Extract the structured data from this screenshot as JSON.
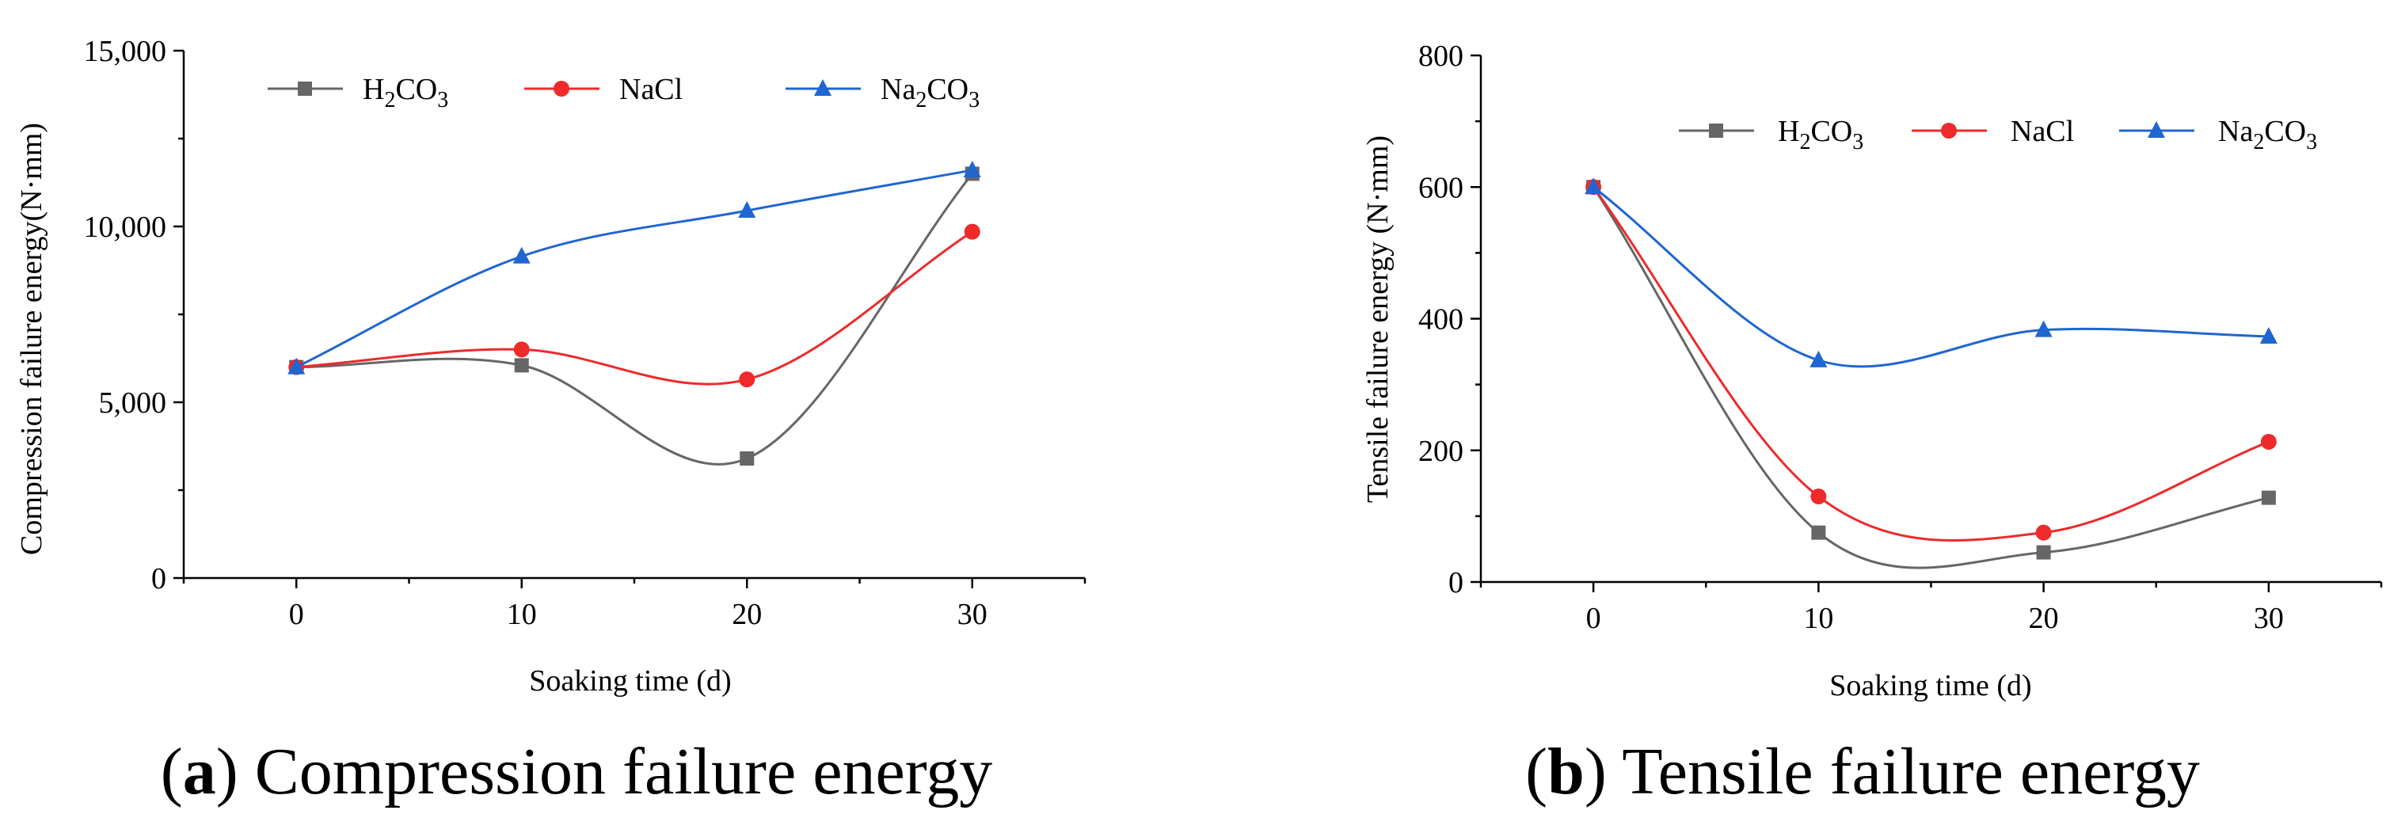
{
  "chart_data": [
    {
      "type": "line",
      "id": "a",
      "caption": {
        "letter": "a",
        "title": "Compression failure energy"
      },
      "xlabel": "Soaking time (d)",
      "ylabel": "Compression failure energy(N·mm)",
      "x": [
        0,
        10,
        20,
        30
      ],
      "xlim": [
        -5,
        35
      ],
      "ylim": [
        0,
        15000
      ],
      "xticks": [
        0,
        10,
        20,
        30
      ],
      "xtick_labels": [
        "0",
        "10",
        "20",
        "30"
      ],
      "yticks": [
        0,
        5000,
        10000,
        15000
      ],
      "ytick_labels": [
        "0",
        "5,000",
        "10,000",
        "15,000"
      ],
      "legend_position": "top",
      "series": [
        {
          "name": "H2CO3",
          "label_parts": [
            "H",
            "2",
            "CO",
            "3"
          ],
          "color": "#666666",
          "marker": "square",
          "values": [
            6000,
            6050,
            3400,
            11500
          ]
        },
        {
          "name": "NaCl",
          "label_parts": [
            "NaCl",
            "",
            "",
            ""
          ],
          "color": "#ee2a2a",
          "marker": "circle",
          "values": [
            6000,
            6500,
            5650,
            9850
          ]
        },
        {
          "name": "Na2CO3",
          "label_parts": [
            "Na",
            "2",
            "CO",
            "3"
          ],
          "color": "#1f66d1",
          "marker": "triangle",
          "values": [
            6000,
            9150,
            10450,
            11600
          ]
        }
      ]
    },
    {
      "type": "line",
      "id": "b",
      "caption": {
        "letter": "b",
        "title": "Tensile failure energy"
      },
      "xlabel": "Soaking time (d)",
      "ylabel": "Tensile failure energy (N·mm)",
      "x": [
        0,
        10,
        20,
        30
      ],
      "xlim": [
        -5,
        35
      ],
      "ylim": [
        0,
        800
      ],
      "xticks": [
        0,
        10,
        20,
        30
      ],
      "xtick_labels": [
        "0",
        "10",
        "20",
        "30"
      ],
      "yticks": [
        0,
        200,
        400,
        600,
        800
      ],
      "ytick_labels": [
        "0",
        "200",
        "400",
        "600",
        "800"
      ],
      "legend_position": "top-right",
      "series": [
        {
          "name": "H2CO3",
          "label_parts": [
            "H",
            "2",
            "CO",
            "3"
          ],
          "color": "#666666",
          "marker": "square",
          "values": [
            600,
            75,
            45,
            128
          ]
        },
        {
          "name": "NaCl",
          "label_parts": [
            "NaCl",
            "",
            "",
            ""
          ],
          "color": "#ee2a2a",
          "marker": "circle",
          "values": [
            600,
            130,
            75,
            213
          ]
        },
        {
          "name": "Na2CO3",
          "label_parts": [
            "Na",
            "2",
            "CO",
            "3"
          ],
          "color": "#1f66d1",
          "marker": "triangle",
          "values": [
            600,
            337,
            383,
            373
          ]
        }
      ]
    }
  ]
}
